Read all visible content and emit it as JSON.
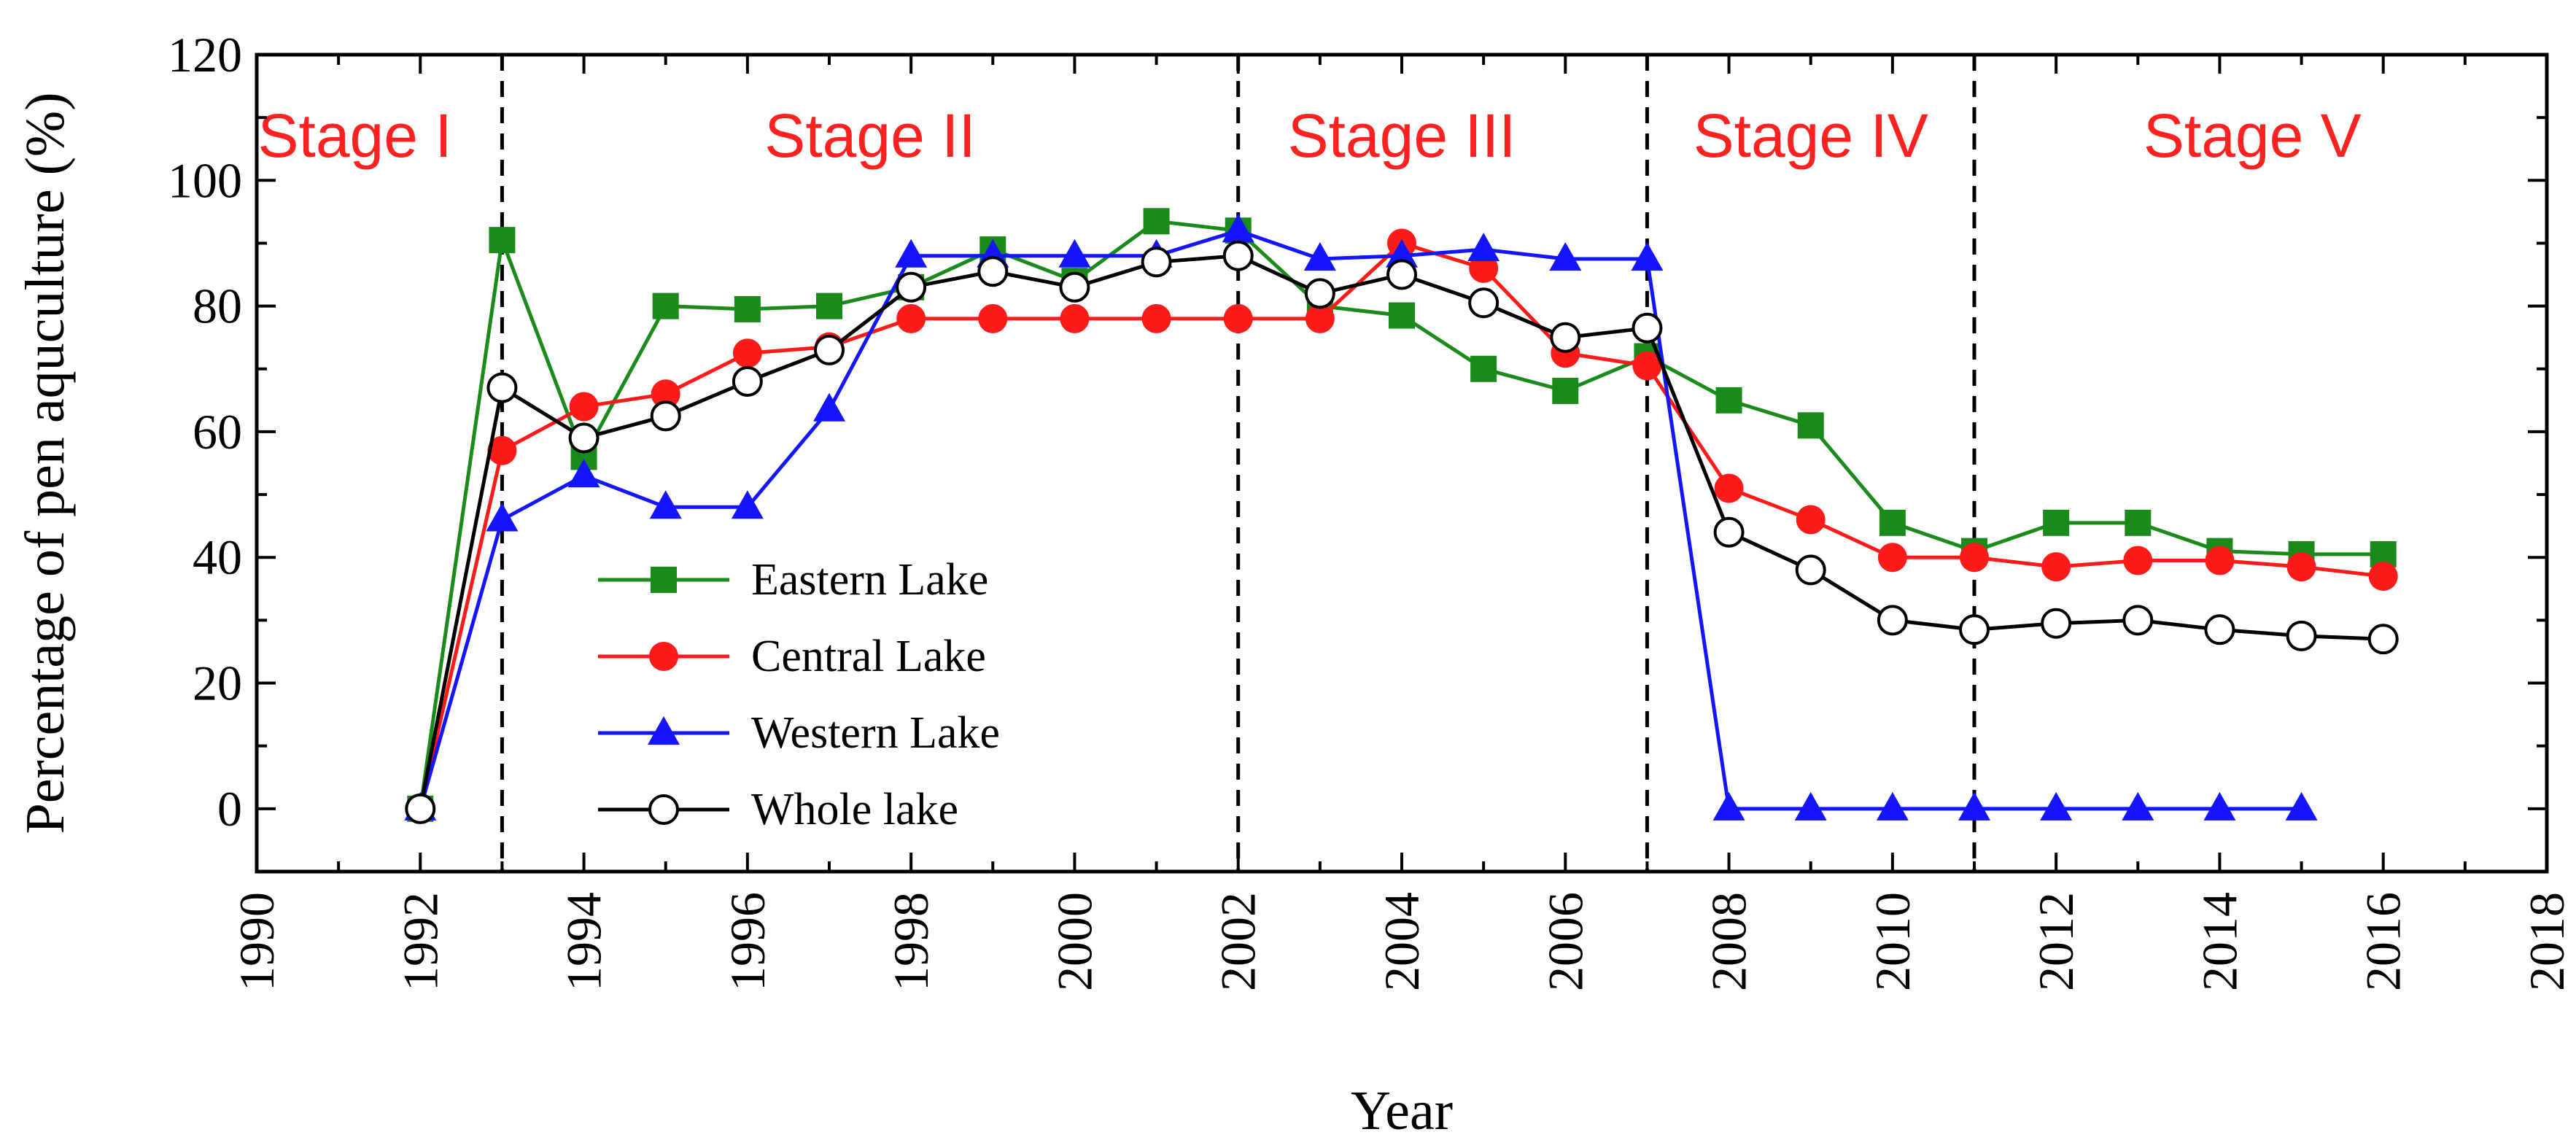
{
  "chart_data": {
    "type": "line",
    "title": "",
    "xlabel": "Year",
    "ylabel": "Percentage of pen aquculture  (%)",
    "xlim": [
      1990,
      2018
    ],
    "ylim": [
      -10,
      120
    ],
    "xticks": [
      1990,
      1992,
      1994,
      1996,
      1998,
      2000,
      2002,
      2004,
      2006,
      2008,
      2010,
      2012,
      2014,
      2016,
      2018
    ],
    "yticks": [
      0,
      20,
      40,
      60,
      80,
      100,
      120
    ],
    "stage_boundaries": [
      1993,
      2002,
      2007,
      2011
    ],
    "stages": [
      {
        "label": "Stage I",
        "x": 1991.2
      },
      {
        "label": "Stage II",
        "x": 1997.5
      },
      {
        "label": "Stage III",
        "x": 2004.0
      },
      {
        "label": "Stage IV",
        "x": 2009.0
      },
      {
        "label": "Stage V",
        "x": 2014.4
      }
    ],
    "stage_label_y": 107,
    "stage_color": "#ff2020",
    "legend_position": "lower-left",
    "series": [
      {
        "name": "Eastern Lake",
        "color": "#1a8a1a",
        "marker": "square",
        "x": [
          1992,
          1993,
          1994,
          1995,
          1996,
          1997,
          1998,
          1999,
          2000,
          2001,
          2002,
          2003,
          2004,
          2005,
          2006,
          2007,
          2008,
          2009,
          2010,
          2011,
          2012,
          2013,
          2014,
          2015,
          2016
        ],
        "y": [
          0,
          90.5,
          56,
          80,
          79.5,
          80,
          83,
          89,
          84,
          93.5,
          92,
          80,
          78.5,
          70,
          66.5,
          72,
          65,
          61,
          45.5,
          41,
          45.5,
          45.5,
          41,
          40.5,
          40.5
        ]
      },
      {
        "name": "Central Lake",
        "color": "#ff1a1a",
        "marker": "circle",
        "x": [
          1992,
          1993,
          1994,
          1995,
          1996,
          1997,
          1998,
          1999,
          2000,
          2001,
          2002,
          2003,
          2004,
          2005,
          2006,
          2007,
          2008,
          2009,
          2010,
          2011,
          2012,
          2013,
          2014,
          2015,
          2016
        ],
        "y": [
          0,
          57,
          64,
          66,
          72.5,
          73.5,
          78,
          78,
          78,
          78,
          78,
          78,
          90,
          86,
          72.5,
          70.5,
          51,
          46,
          40,
          40,
          38.5,
          39.5,
          39.5,
          38.5,
          37
        ]
      },
      {
        "name": "Western Lake",
        "color": "#1414ff",
        "marker": "triangle",
        "x": [
          1992,
          1993,
          1994,
          1995,
          1996,
          1997,
          1998,
          1999,
          2000,
          2001,
          2002,
          2003,
          2004,
          2005,
          2006,
          2007,
          2008,
          2009,
          2010,
          2011,
          2012,
          2013,
          2014,
          2015
        ],
        "y": [
          0,
          46,
          53,
          48,
          48,
          63.5,
          88,
          88,
          88,
          88,
          92,
          87.5,
          88,
          89,
          87.5,
          87.5,
          0,
          0,
          0,
          0,
          0,
          0,
          0,
          0
        ]
      },
      {
        "name": "Whole lake",
        "color": "#000000",
        "marker": "open-circle",
        "x": [
          1992,
          1993,
          1994,
          1995,
          1996,
          1997,
          1998,
          1999,
          2000,
          2001,
          2002,
          2003,
          2004,
          2005,
          2006,
          2007,
          2008,
          2009,
          2010,
          2011,
          2012,
          2013,
          2014,
          2015,
          2016
        ],
        "y": [
          0,
          67,
          59,
          62.5,
          68,
          73,
          83,
          85.5,
          83,
          87,
          88,
          82,
          85,
          80.5,
          75,
          76.5,
          44,
          38,
          30,
          28.5,
          29.5,
          30,
          28.5,
          27.5,
          27
        ]
      }
    ]
  }
}
